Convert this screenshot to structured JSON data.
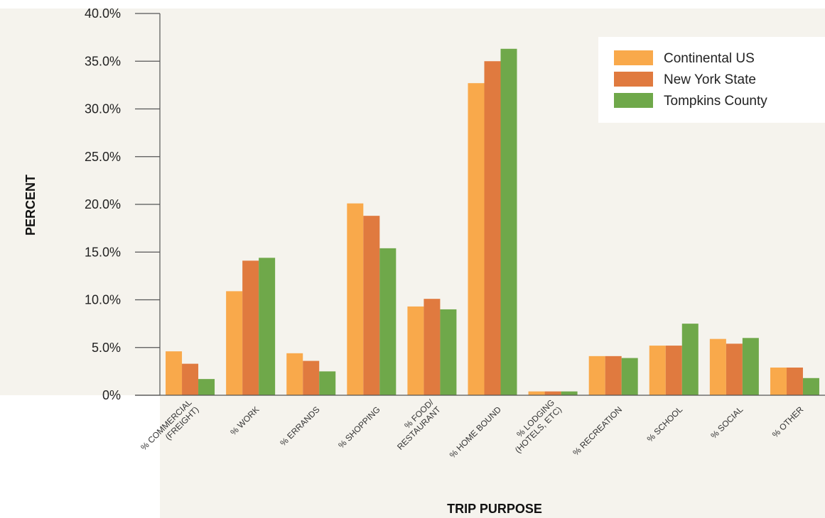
{
  "chart_data": {
    "type": "bar",
    "title": "",
    "xlabel": "TRIP PURPOSE",
    "ylabel": "PERCENT",
    "ylim": [
      0,
      40
    ],
    "yticks": [
      "0%",
      "5.0%",
      "10.0%",
      "15.0%",
      "20.0%",
      "25.0%",
      "30.0%",
      "35.0%",
      "40.0%"
    ],
    "categories": [
      [
        "% COMMERCIAL",
        "(FREIGHT)"
      ],
      [
        "% WORK"
      ],
      [
        "% ERRANDS"
      ],
      [
        "% SHOPPING"
      ],
      [
        "% FOOD/",
        "RESTAURANT"
      ],
      [
        "% HOME BOUND"
      ],
      [
        "% LODGING",
        "(HOTELS, ETC)"
      ],
      [
        "% RECREATION"
      ],
      [
        "% SCHOOL"
      ],
      [
        "% SOCIAL"
      ],
      [
        "% OTHER"
      ]
    ],
    "series": [
      {
        "name": "Continental US",
        "color": "#F9A94B",
        "values": [
          4.6,
          10.9,
          4.4,
          20.1,
          9.3,
          32.7,
          0.4,
          4.1,
          5.2,
          5.9,
          2.9
        ]
      },
      {
        "name": "New York State",
        "color": "#E07A3F",
        "values": [
          3.3,
          14.1,
          3.6,
          18.8,
          10.1,
          35.0,
          0.4,
          4.1,
          5.2,
          5.4,
          2.9
        ]
      },
      {
        "name": "Tompkins County",
        "color": "#6FA84A",
        "values": [
          1.7,
          14.4,
          2.5,
          15.4,
          9.0,
          36.3,
          0.4,
          3.9,
          7.5,
          6.0,
          1.8
        ]
      }
    ],
    "legend_position": "top-right",
    "grid": false
  }
}
